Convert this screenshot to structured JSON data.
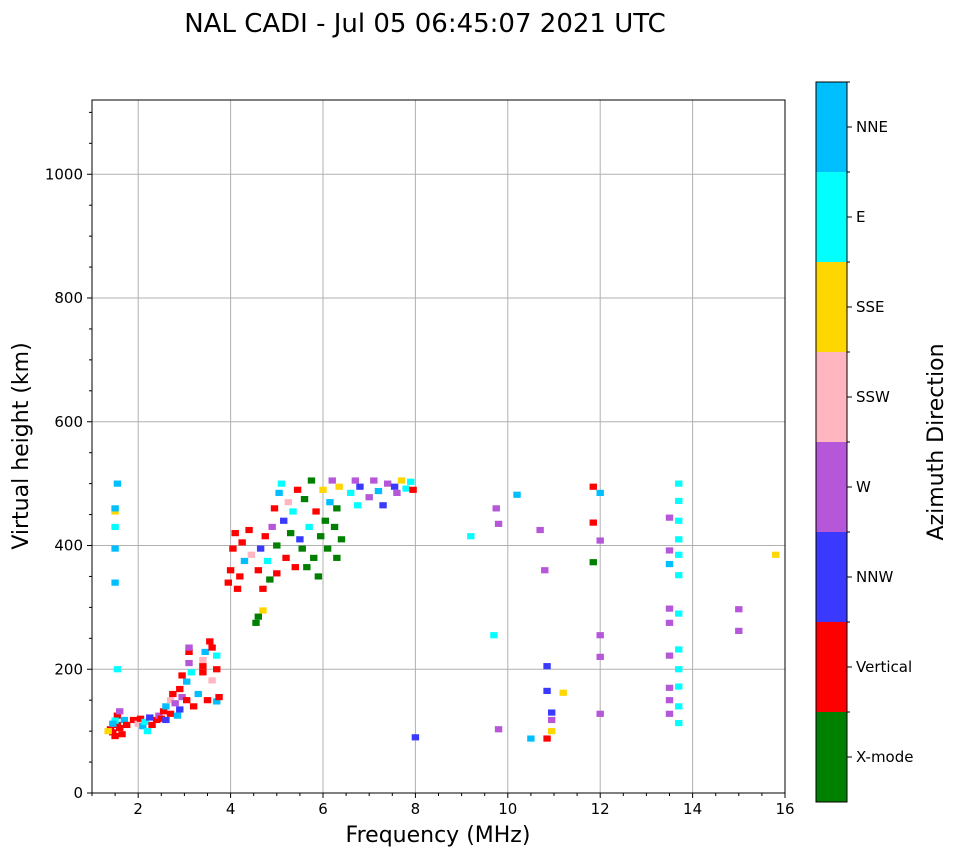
{
  "chart_data": {
    "type": "scatter",
    "title": "NAL CADI - Jul 05 06:45:07 2021 UTC",
    "xlabel": "Frequency (MHz)",
    "ylabel": "Virtual height (km)",
    "xlim": [
      1.0,
      16.0
    ],
    "ylim": [
      0,
      1120
    ],
    "xticks": [
      2,
      4,
      6,
      8,
      10,
      12,
      14,
      16
    ],
    "yticks": [
      0,
      200,
      400,
      600,
      800,
      1000
    ],
    "grid": true,
    "colorbar": {
      "label": "Azimuth Direction",
      "categories": [
        {
          "name": "X-mode",
          "color": "#008000"
        },
        {
          "name": "Vertical",
          "color": "#ff0000"
        },
        {
          "name": "NNW",
          "color": "#3a3aff"
        },
        {
          "name": "W",
          "color": "#b557d8"
        },
        {
          "name": "SSW",
          "color": "#ffb6c1"
        },
        {
          "name": "SSE",
          "color": "#ffd700"
        },
        {
          "name": "E",
          "color": "#00ffff"
        },
        {
          "name": "NNE",
          "color": "#00bfff"
        }
      ]
    },
    "echoes": [
      {
        "f": 1.4,
        "h": 103,
        "c": "Vertical"
      },
      {
        "f": 1.45,
        "h": 98,
        "c": "Vertical"
      },
      {
        "f": 1.5,
        "h": 92,
        "c": "Vertical"
      },
      {
        "f": 1.55,
        "h": 110,
        "c": "Vertical"
      },
      {
        "f": 1.55,
        "h": 125,
        "c": "Vertical"
      },
      {
        "f": 1.6,
        "h": 105,
        "c": "Vertical"
      },
      {
        "f": 1.65,
        "h": 95,
        "c": "Vertical"
      },
      {
        "f": 1.5,
        "h": 117,
        "c": "E"
      },
      {
        "f": 1.6,
        "h": 132,
        "c": "W"
      },
      {
        "f": 1.45,
        "h": 112,
        "c": "NNE"
      },
      {
        "f": 1.35,
        "h": 100,
        "c": "SSE"
      },
      {
        "f": 1.7,
        "h": 118,
        "c": "NNE"
      },
      {
        "f": 1.75,
        "h": 110,
        "c": "Vertical"
      },
      {
        "f": 1.55,
        "h": 200,
        "c": "E"
      },
      {
        "f": 1.5,
        "h": 340,
        "c": "NNE"
      },
      {
        "f": 1.5,
        "h": 395,
        "c": "NNE"
      },
      {
        "f": 1.5,
        "h": 430,
        "c": "E"
      },
      {
        "f": 1.5,
        "h": 455,
        "c": "SSE"
      },
      {
        "f": 1.5,
        "h": 460,
        "c": "NNE"
      },
      {
        "f": 1.55,
        "h": 500,
        "c": "NNE"
      },
      {
        "f": 1.9,
        "h": 118,
        "c": "Vertical"
      },
      {
        "f": 2.0,
        "h": 112,
        "c": "SSW"
      },
      {
        "f": 2.05,
        "h": 120,
        "c": "Vertical"
      },
      {
        "f": 2.1,
        "h": 108,
        "c": "NNE"
      },
      {
        "f": 2.15,
        "h": 115,
        "c": "E"
      },
      {
        "f": 2.2,
        "h": 100,
        "c": "E"
      },
      {
        "f": 2.25,
        "h": 122,
        "c": "NNW"
      },
      {
        "f": 2.3,
        "h": 110,
        "c": "Vertical"
      },
      {
        "f": 2.4,
        "h": 118,
        "c": "Vertical"
      },
      {
        "f": 2.45,
        "h": 125,
        "c": "W"
      },
      {
        "f": 2.5,
        "h": 120,
        "c": "Vertical"
      },
      {
        "f": 2.55,
        "h": 132,
        "c": "Vertical"
      },
      {
        "f": 2.6,
        "h": 140,
        "c": "NNE"
      },
      {
        "f": 2.6,
        "h": 118,
        "c": "NNW"
      },
      {
        "f": 2.7,
        "h": 150,
        "c": "SSW"
      },
      {
        "f": 2.7,
        "h": 128,
        "c": "Vertical"
      },
      {
        "f": 2.75,
        "h": 160,
        "c": "Vertical"
      },
      {
        "f": 2.8,
        "h": 145,
        "c": "W"
      },
      {
        "f": 2.85,
        "h": 125,
        "c": "NNE"
      },
      {
        "f": 2.9,
        "h": 135,
        "c": "NNW"
      },
      {
        "f": 2.9,
        "h": 168,
        "c": "Vertical"
      },
      {
        "f": 2.95,
        "h": 155,
        "c": "W"
      },
      {
        "f": 2.95,
        "h": 190,
        "c": "Vertical"
      },
      {
        "f": 3.05,
        "h": 180,
        "c": "NNE"
      },
      {
        "f": 3.05,
        "h": 150,
        "c": "Vertical"
      },
      {
        "f": 3.1,
        "h": 210,
        "c": "W"
      },
      {
        "f": 3.1,
        "h": 228,
        "c": "Vertical"
      },
      {
        "f": 3.1,
        "h": 235,
        "c": "W"
      },
      {
        "f": 3.15,
        "h": 195,
        "c": "E"
      },
      {
        "f": 3.2,
        "h": 140,
        "c": "Vertical"
      },
      {
        "f": 3.3,
        "h": 160,
        "c": "NNE"
      },
      {
        "f": 3.4,
        "h": 195,
        "c": "Vertical"
      },
      {
        "f": 3.4,
        "h": 205,
        "c": "Vertical"
      },
      {
        "f": 3.4,
        "h": 215,
        "c": "SSW"
      },
      {
        "f": 3.45,
        "h": 228,
        "c": "NNE"
      },
      {
        "f": 3.5,
        "h": 150,
        "c": "Vertical"
      },
      {
        "f": 3.55,
        "h": 245,
        "c": "Vertical"
      },
      {
        "f": 3.6,
        "h": 182,
        "c": "SSW"
      },
      {
        "f": 3.6,
        "h": 235,
        "c": "Vertical"
      },
      {
        "f": 3.7,
        "h": 200,
        "c": "Vertical"
      },
      {
        "f": 3.7,
        "h": 148,
        "c": "NNE"
      },
      {
        "f": 3.7,
        "h": 222,
        "c": "E"
      },
      {
        "f": 3.75,
        "h": 155,
        "c": "Vertical"
      },
      {
        "f": 3.95,
        "h": 340,
        "c": "Vertical"
      },
      {
        "f": 4.0,
        "h": 360,
        "c": "Vertical"
      },
      {
        "f": 4.05,
        "h": 395,
        "c": "Vertical"
      },
      {
        "f": 4.1,
        "h": 420,
        "c": "Vertical"
      },
      {
        "f": 4.15,
        "h": 330,
        "c": "Vertical"
      },
      {
        "f": 4.2,
        "h": 350,
        "c": "Vertical"
      },
      {
        "f": 4.25,
        "h": 405,
        "c": "Vertical"
      },
      {
        "f": 4.3,
        "h": 375,
        "c": "NNE"
      },
      {
        "f": 4.4,
        "h": 425,
        "c": "Vertical"
      },
      {
        "f": 4.45,
        "h": 385,
        "c": "SSW"
      },
      {
        "f": 4.55,
        "h": 275,
        "c": "X-mode"
      },
      {
        "f": 4.6,
        "h": 285,
        "c": "X-mode"
      },
      {
        "f": 4.6,
        "h": 360,
        "c": "Vertical"
      },
      {
        "f": 4.65,
        "h": 395,
        "c": "NNW"
      },
      {
        "f": 4.7,
        "h": 330,
        "c": "Vertical"
      },
      {
        "f": 4.7,
        "h": 295,
        "c": "SSE"
      },
      {
        "f": 4.75,
        "h": 415,
        "c": "Vertical"
      },
      {
        "f": 4.8,
        "h": 375,
        "c": "E"
      },
      {
        "f": 4.85,
        "h": 345,
        "c": "X-mode"
      },
      {
        "f": 4.9,
        "h": 430,
        "c": "W"
      },
      {
        "f": 4.95,
        "h": 460,
        "c": "Vertical"
      },
      {
        "f": 5.0,
        "h": 400,
        "c": "X-mode"
      },
      {
        "f": 5.0,
        "h": 355,
        "c": "Vertical"
      },
      {
        "f": 5.05,
        "h": 485,
        "c": "NNE"
      },
      {
        "f": 5.1,
        "h": 500,
        "c": "E"
      },
      {
        "f": 5.15,
        "h": 440,
        "c": "NNW"
      },
      {
        "f": 5.2,
        "h": 380,
        "c": "Vertical"
      },
      {
        "f": 5.25,
        "h": 470,
        "c": "SSW"
      },
      {
        "f": 5.3,
        "h": 420,
        "c": "X-mode"
      },
      {
        "f": 5.35,
        "h": 455,
        "c": "E"
      },
      {
        "f": 5.4,
        "h": 365,
        "c": "Vertical"
      },
      {
        "f": 5.45,
        "h": 490,
        "c": "Vertical"
      },
      {
        "f": 5.5,
        "h": 410,
        "c": "NNW"
      },
      {
        "f": 5.55,
        "h": 395,
        "c": "X-mode"
      },
      {
        "f": 5.6,
        "h": 475,
        "c": "X-mode"
      },
      {
        "f": 5.65,
        "h": 365,
        "c": "X-mode"
      },
      {
        "f": 5.7,
        "h": 430,
        "c": "E"
      },
      {
        "f": 5.75,
        "h": 505,
        "c": "X-mode"
      },
      {
        "f": 5.8,
        "h": 380,
        "c": "X-mode"
      },
      {
        "f": 5.85,
        "h": 455,
        "c": "Vertical"
      },
      {
        "f": 5.9,
        "h": 350,
        "c": "X-mode"
      },
      {
        "f": 5.95,
        "h": 415,
        "c": "X-mode"
      },
      {
        "f": 6.0,
        "h": 490,
        "c": "SSE"
      },
      {
        "f": 6.05,
        "h": 440,
        "c": "X-mode"
      },
      {
        "f": 6.1,
        "h": 395,
        "c": "X-mode"
      },
      {
        "f": 6.15,
        "h": 470,
        "c": "NNE"
      },
      {
        "f": 6.2,
        "h": 505,
        "c": "W"
      },
      {
        "f": 6.25,
        "h": 430,
        "c": "X-mode"
      },
      {
        "f": 6.3,
        "h": 380,
        "c": "X-mode"
      },
      {
        "f": 6.3,
        "h": 460,
        "c": "X-mode"
      },
      {
        "f": 6.35,
        "h": 495,
        "c": "SSE"
      },
      {
        "f": 6.4,
        "h": 410,
        "c": "X-mode"
      },
      {
        "f": 6.6,
        "h": 485,
        "c": "E"
      },
      {
        "f": 6.7,
        "h": 505,
        "c": "W"
      },
      {
        "f": 6.75,
        "h": 465,
        "c": "E"
      },
      {
        "f": 6.8,
        "h": 495,
        "c": "NNW"
      },
      {
        "f": 7.0,
        "h": 478,
        "c": "W"
      },
      {
        "f": 7.1,
        "h": 505,
        "c": "W"
      },
      {
        "f": 7.2,
        "h": 488,
        "c": "NNE"
      },
      {
        "f": 7.3,
        "h": 465,
        "c": "NNW"
      },
      {
        "f": 7.4,
        "h": 500,
        "c": "W"
      },
      {
        "f": 7.55,
        "h": 495,
        "c": "NNW"
      },
      {
        "f": 7.6,
        "h": 485,
        "c": "W"
      },
      {
        "f": 7.7,
        "h": 505,
        "c": "SSE"
      },
      {
        "f": 7.8,
        "h": 492,
        "c": "E"
      },
      {
        "f": 7.9,
        "h": 503,
        "c": "E"
      },
      {
        "f": 7.95,
        "h": 490,
        "c": "Vertical"
      },
      {
        "f": 8.0,
        "h": 90,
        "c": "NNW"
      },
      {
        "f": 9.2,
        "h": 415,
        "c": "E"
      },
      {
        "f": 9.7,
        "h": 255,
        "c": "E"
      },
      {
        "f": 9.75,
        "h": 460,
        "c": "W"
      },
      {
        "f": 9.8,
        "h": 435,
        "c": "W"
      },
      {
        "f": 9.8,
        "h": 103,
        "c": "W"
      },
      {
        "f": 10.2,
        "h": 482,
        "c": "NNE"
      },
      {
        "f": 10.5,
        "h": 88,
        "c": "NNE"
      },
      {
        "f": 10.7,
        "h": 425,
        "c": "W"
      },
      {
        "f": 10.8,
        "h": 360,
        "c": "W"
      },
      {
        "f": 10.85,
        "h": 205,
        "c": "NNW"
      },
      {
        "f": 10.85,
        "h": 165,
        "c": "NNW"
      },
      {
        "f": 10.85,
        "h": 88,
        "c": "Vertical"
      },
      {
        "f": 10.95,
        "h": 130,
        "c": "NNW"
      },
      {
        "f": 10.95,
        "h": 118,
        "c": "W"
      },
      {
        "f": 10.95,
        "h": 100,
        "c": "SSE"
      },
      {
        "f": 11.2,
        "h": 162,
        "c": "SSE"
      },
      {
        "f": 11.85,
        "h": 495,
        "c": "Vertical"
      },
      {
        "f": 11.85,
        "h": 437,
        "c": "Vertical"
      },
      {
        "f": 11.85,
        "h": 373,
        "c": "X-mode"
      },
      {
        "f": 12.0,
        "h": 485,
        "c": "NNE"
      },
      {
        "f": 12.0,
        "h": 408,
        "c": "W"
      },
      {
        "f": 12.0,
        "h": 255,
        "c": "W"
      },
      {
        "f": 12.0,
        "h": 220,
        "c": "W"
      },
      {
        "f": 12.0,
        "h": 128,
        "c": "W"
      },
      {
        "f": 13.5,
        "h": 445,
        "c": "W"
      },
      {
        "f": 13.5,
        "h": 392,
        "c": "W"
      },
      {
        "f": 13.5,
        "h": 370,
        "c": "NNE"
      },
      {
        "f": 13.5,
        "h": 298,
        "c": "W"
      },
      {
        "f": 13.5,
        "h": 275,
        "c": "W"
      },
      {
        "f": 13.5,
        "h": 222,
        "c": "W"
      },
      {
        "f": 13.5,
        "h": 170,
        "c": "W"
      },
      {
        "f": 13.5,
        "h": 150,
        "c": "W"
      },
      {
        "f": 13.5,
        "h": 128,
        "c": "W"
      },
      {
        "f": 13.7,
        "h": 500,
        "c": "E"
      },
      {
        "f": 13.7,
        "h": 472,
        "c": "E"
      },
      {
        "f": 13.7,
        "h": 440,
        "c": "E"
      },
      {
        "f": 13.7,
        "h": 410,
        "c": "E"
      },
      {
        "f": 13.7,
        "h": 385,
        "c": "E"
      },
      {
        "f": 13.7,
        "h": 352,
        "c": "E"
      },
      {
        "f": 13.7,
        "h": 290,
        "c": "E"
      },
      {
        "f": 13.7,
        "h": 232,
        "c": "E"
      },
      {
        "f": 13.7,
        "h": 200,
        "c": "E"
      },
      {
        "f": 13.7,
        "h": 172,
        "c": "E"
      },
      {
        "f": 13.7,
        "h": 140,
        "c": "E"
      },
      {
        "f": 13.7,
        "h": 113,
        "c": "E"
      },
      {
        "f": 15.0,
        "h": 297,
        "c": "W"
      },
      {
        "f": 15.0,
        "h": 262,
        "c": "W"
      },
      {
        "f": 15.8,
        "h": 385,
        "c": "SSE"
      }
    ]
  }
}
